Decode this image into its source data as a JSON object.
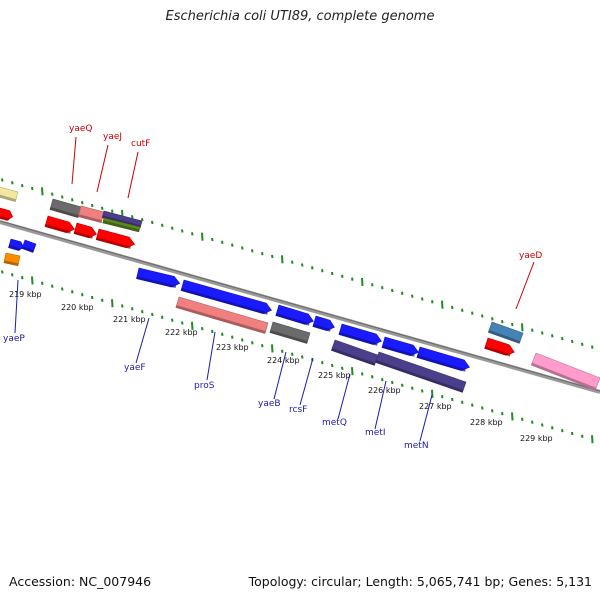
{
  "title": "Escherichia coli UTI89, complete genome",
  "footer": {
    "accession": "Accession: NC_007946",
    "summary": "Topology: circular; Length: 5,065,741 bp; Genes: 5,131"
  },
  "colors": {
    "backbone": "#8c8c8c",
    "tick": "#1e8c1e",
    "forward_label": "#cc0000",
    "reverse_label": "#1a1ab4",
    "leader": {
      "forward": "#cc0000",
      "reverse": "#1a1ab4"
    }
  },
  "scale_labels": [
    "219 kbp",
    "220 kbp",
    "221 kbp",
    "222 kbp",
    "223 kbp",
    "224 kbp",
    "225 kbp",
    "226 kbp",
    "227 kbp",
    "228 kbp",
    "229 kbp"
  ],
  "genes": [
    {
      "label": "",
      "color": "#f2e6a0",
      "arrow": false
    },
    {
      "label": "",
      "color": "#ff0000",
      "arrow": true
    },
    {
      "label": "",
      "color": "#1a1aff",
      "arrow": true
    },
    {
      "label": "",
      "color": "#1a1aff",
      "arrow": false
    },
    {
      "label": "",
      "color": "#ff8c00",
      "arrow": false
    },
    {
      "label": "yaeQ",
      "color": "#6b6b6b",
      "arrow": false
    },
    {
      "label": "yaeJ",
      "color": "#f08080",
      "arrow": false
    },
    {
      "label": "cutF",
      "color": "#4b3f8c",
      "arrow": false
    },
    {
      "label": "",
      "color": "#5d8a1e",
      "arrow": false
    },
    {
      "label": "",
      "color": "#ff0000",
      "arrow": true
    },
    {
      "label": "",
      "color": "#ff0000",
      "arrow": true
    },
    {
      "label": "",
      "color": "#ff0000",
      "arrow": true
    },
    {
      "label": "yaeP",
      "color": "",
      "arrow": false
    },
    {
      "label": "yaeF",
      "color": "#1a1aff",
      "arrow": true
    },
    {
      "label": "",
      "color": "#1a1aff",
      "arrow": true
    },
    {
      "label": "proS",
      "color": "#f08080",
      "arrow": false
    },
    {
      "label": "",
      "color": "#1a1aff",
      "arrow": true
    },
    {
      "label": "",
      "color": "#1a1aff",
      "arrow": true
    },
    {
      "label": "yaeB",
      "color": "#6b6b6b",
      "arrow": false
    },
    {
      "label": "rcsF",
      "color": "",
      "arrow": false
    },
    {
      "label": "",
      "color": "#1a1aff",
      "arrow": true
    },
    {
      "label": "metQ",
      "color": "#4b3f8c",
      "arrow": false
    },
    {
      "label": "",
      "color": "#1a1aff",
      "arrow": true
    },
    {
      "label": "metI",
      "color": "#4b3f8c",
      "arrow": false
    },
    {
      "label": "",
      "color": "#1a1aff",
      "arrow": true
    },
    {
      "label": "metN",
      "color": "",
      "arrow": false
    },
    {
      "label": "yaeD",
      "color": "#4682b4",
      "arrow": false
    },
    {
      "label": "",
      "color": "#ff0000",
      "arrow": true
    },
    {
      "label": "",
      "color": "#ff9ccc",
      "arrow": false
    }
  ]
}
